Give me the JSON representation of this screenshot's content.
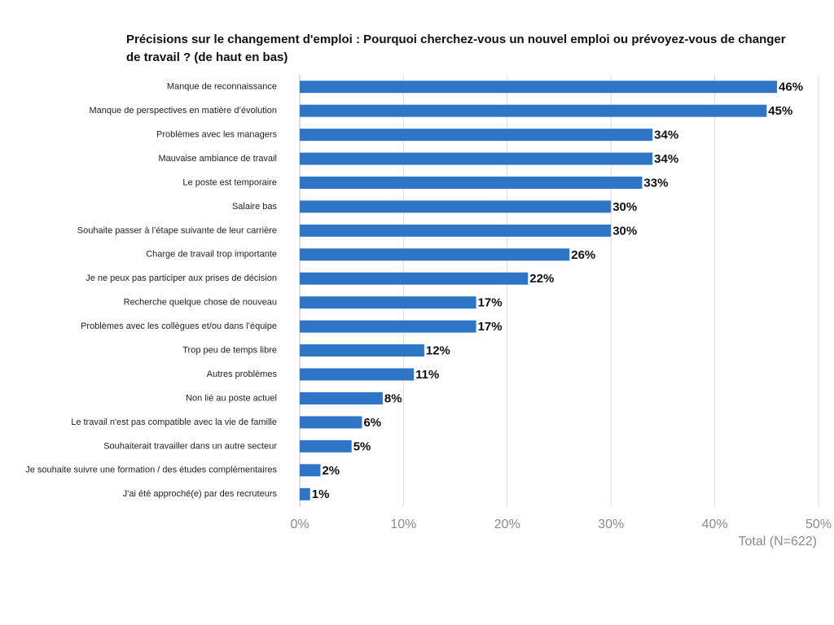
{
  "chart_data": {
    "type": "bar",
    "orientation": "horizontal",
    "title": "Précisions sur le changement d'emploi : Pourquoi cherchez-vous un nouvel emploi ou prévoyez-vous de changer de travail ? (de haut en bas)",
    "xlabel": "Total (N=622)",
    "categories": [
      "Manque de reconnaissance",
      "Manque de perspectives en matière d’évolution",
      "Problèmes avec les managers",
      "Mauvaise ambiance de travail",
      "Le poste est temporaire",
      "Salaire bas",
      "Souhaite passer à l’étape suivante de leur carrière",
      "Charge de travail trop importante",
      "Je ne peux pas participer aux prises de décision",
      "Recherche quelque chose de nouveau",
      "Problèmes avec les collègues et/ou dans l’équipe",
      "Trop peu de temps libre",
      "Autres problèmes",
      "Non lié au poste actuel",
      "Le travail n'est pas compatible avec la vie de famille",
      "Souhaiterait travailler dans un autre secteur",
      "Je souhaite suivre une formation / des études complémentaires",
      "J'ai été approché(e) par des recruteurs"
    ],
    "values": [
      46,
      45,
      34,
      34,
      33,
      30,
      30,
      26,
      22,
      17,
      17,
      12,
      11,
      8,
      6,
      5,
      2,
      1
    ],
    "value_labels": [
      "46%",
      "45%",
      "34%",
      "34%",
      "33%",
      "30%",
      "30%",
      "26%",
      "22%",
      "17%",
      "17%",
      "12%",
      "11%",
      "8%",
      "6%",
      "5%",
      "2%",
      "1%"
    ],
    "color": "#2f75c5",
    "xlim": [
      0,
      50
    ],
    "xticks": [
      {
        "value": 0,
        "label": "0%"
      },
      {
        "value": 10,
        "label": "10%"
      },
      {
        "value": 20,
        "label": "20%"
      },
      {
        "value": 30,
        "label": "30%"
      },
      {
        "value": 40,
        "label": "40%"
      },
      {
        "value": 50,
        "label": "50%"
      }
    ],
    "grid": true
  }
}
